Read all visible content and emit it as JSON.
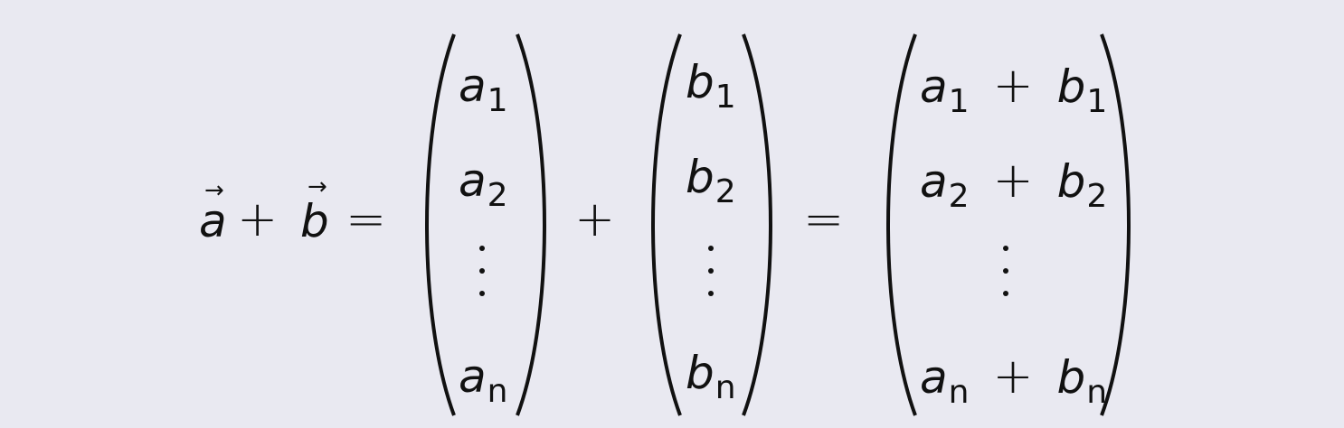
{
  "equation": {
    "lhs": {
      "a": "a",
      "vector_arrow": "→",
      "plus": "+",
      "b": "b",
      "equals": "="
    },
    "vector_a": {
      "letter": "a",
      "subscripts": [
        "1",
        "2",
        "n"
      ]
    },
    "middle_plus": "+",
    "vector_b": {
      "letter": "b",
      "subscripts": [
        "1",
        "2",
        "n"
      ]
    },
    "middle_equals": "=",
    "vector_sum": {
      "letter_a": "a",
      "letter_b": "b",
      "plus": "+",
      "subscripts": [
        "1",
        "2",
        "n"
      ]
    }
  },
  "colors": {
    "background": "#e9e9f1",
    "ink": "#111111"
  }
}
